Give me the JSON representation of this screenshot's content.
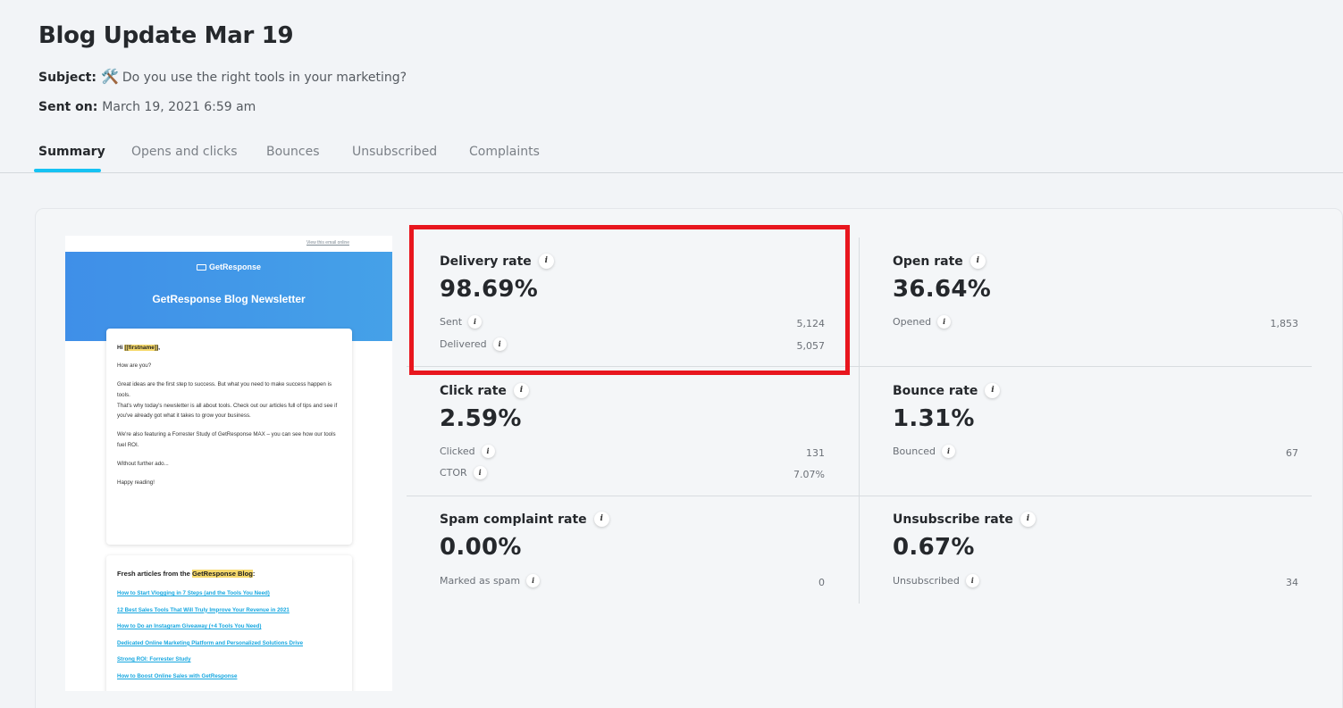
{
  "header": {
    "title": "Blog Update Mar 19",
    "subject_label": "Subject:",
    "subject_emoji": "🛠️",
    "subject_value": "Do you use the right tools in your marketing?",
    "sent_label": "Sent on:",
    "sent_value": "March 19, 2021 6:59 am"
  },
  "tabs": [
    {
      "label": "Summary",
      "active": true
    },
    {
      "label": "Opens and clicks",
      "active": false
    },
    {
      "label": "Bounces",
      "active": false
    },
    {
      "label": "Unsubscribed",
      "active": false
    },
    {
      "label": "Complaints",
      "active": false
    }
  ],
  "preview": {
    "top_link": "View this email online",
    "brand": "GetResponse",
    "newsletter_title": "GetResponse Blog Newsletter",
    "greeting_prefix": "Hi ",
    "greeting_tag": "[[firstname]]",
    "greeting_suffix": ",",
    "p1": "How are you?",
    "p2": "Great ideas are the first step to success. But what you need to make success happen is tools.",
    "p3": "That's why today's newsletter is all about tools. Check out our articles full of tips and see if you've already got what it takes to grow your business.",
    "p4": "We're also featuring a Forrester Study of GetResponse MAX – you can see how our tools fuel ROI.",
    "p5": "Without further ado...",
    "p6": "Happy reading!",
    "articles_prefix": "Fresh articles from the ",
    "articles_highlight": "GetResponse Blog",
    "articles_suffix": ":",
    "links": [
      "How to Start Vlogging in 7 Steps (and the Tools You Need)",
      "12 Best Sales Tools That Will Truly Improve Your Revenue in 2021",
      "How to Do an Instagram Giveaway (+4 Tools You Need)",
      "Dedicated Online Marketing Platform and Personalized Solutions Drive",
      "Strong ROI: Forrester Study",
      "How to Boost Online Sales with GetResponse"
    ]
  },
  "stats": {
    "delivery": {
      "name": "Delivery rate",
      "value": "98.69%",
      "rows": [
        {
          "label": "Sent",
          "value": "5,124"
        },
        {
          "label": "Delivered",
          "value": "5,057"
        }
      ]
    },
    "open": {
      "name": "Open rate",
      "value": "36.64%",
      "rows": [
        {
          "label": "Opened",
          "value": "1,853"
        }
      ]
    },
    "click": {
      "name": "Click rate",
      "value": "2.59%",
      "rows": [
        {
          "label": "Clicked",
          "value": "131"
        },
        {
          "label": "CTOR",
          "value": "7.07%"
        }
      ]
    },
    "bounce": {
      "name": "Bounce rate",
      "value": "1.31%",
      "rows": [
        {
          "label": "Bounced",
          "value": "67"
        }
      ]
    },
    "spam": {
      "name": "Spam complaint rate",
      "value": "0.00%",
      "rows": [
        {
          "label": "Marked as spam",
          "value": "0"
        }
      ]
    },
    "unsub": {
      "name": "Unsubscribe rate",
      "value": "0.67%",
      "rows": [
        {
          "label": "Unsubscribed",
          "value": "34"
        }
      ]
    }
  },
  "info_glyph": "i",
  "colors": {
    "accent": "#16c2f3",
    "highlight_box": "#e8161e",
    "banner": "#3f8fe8"
  }
}
